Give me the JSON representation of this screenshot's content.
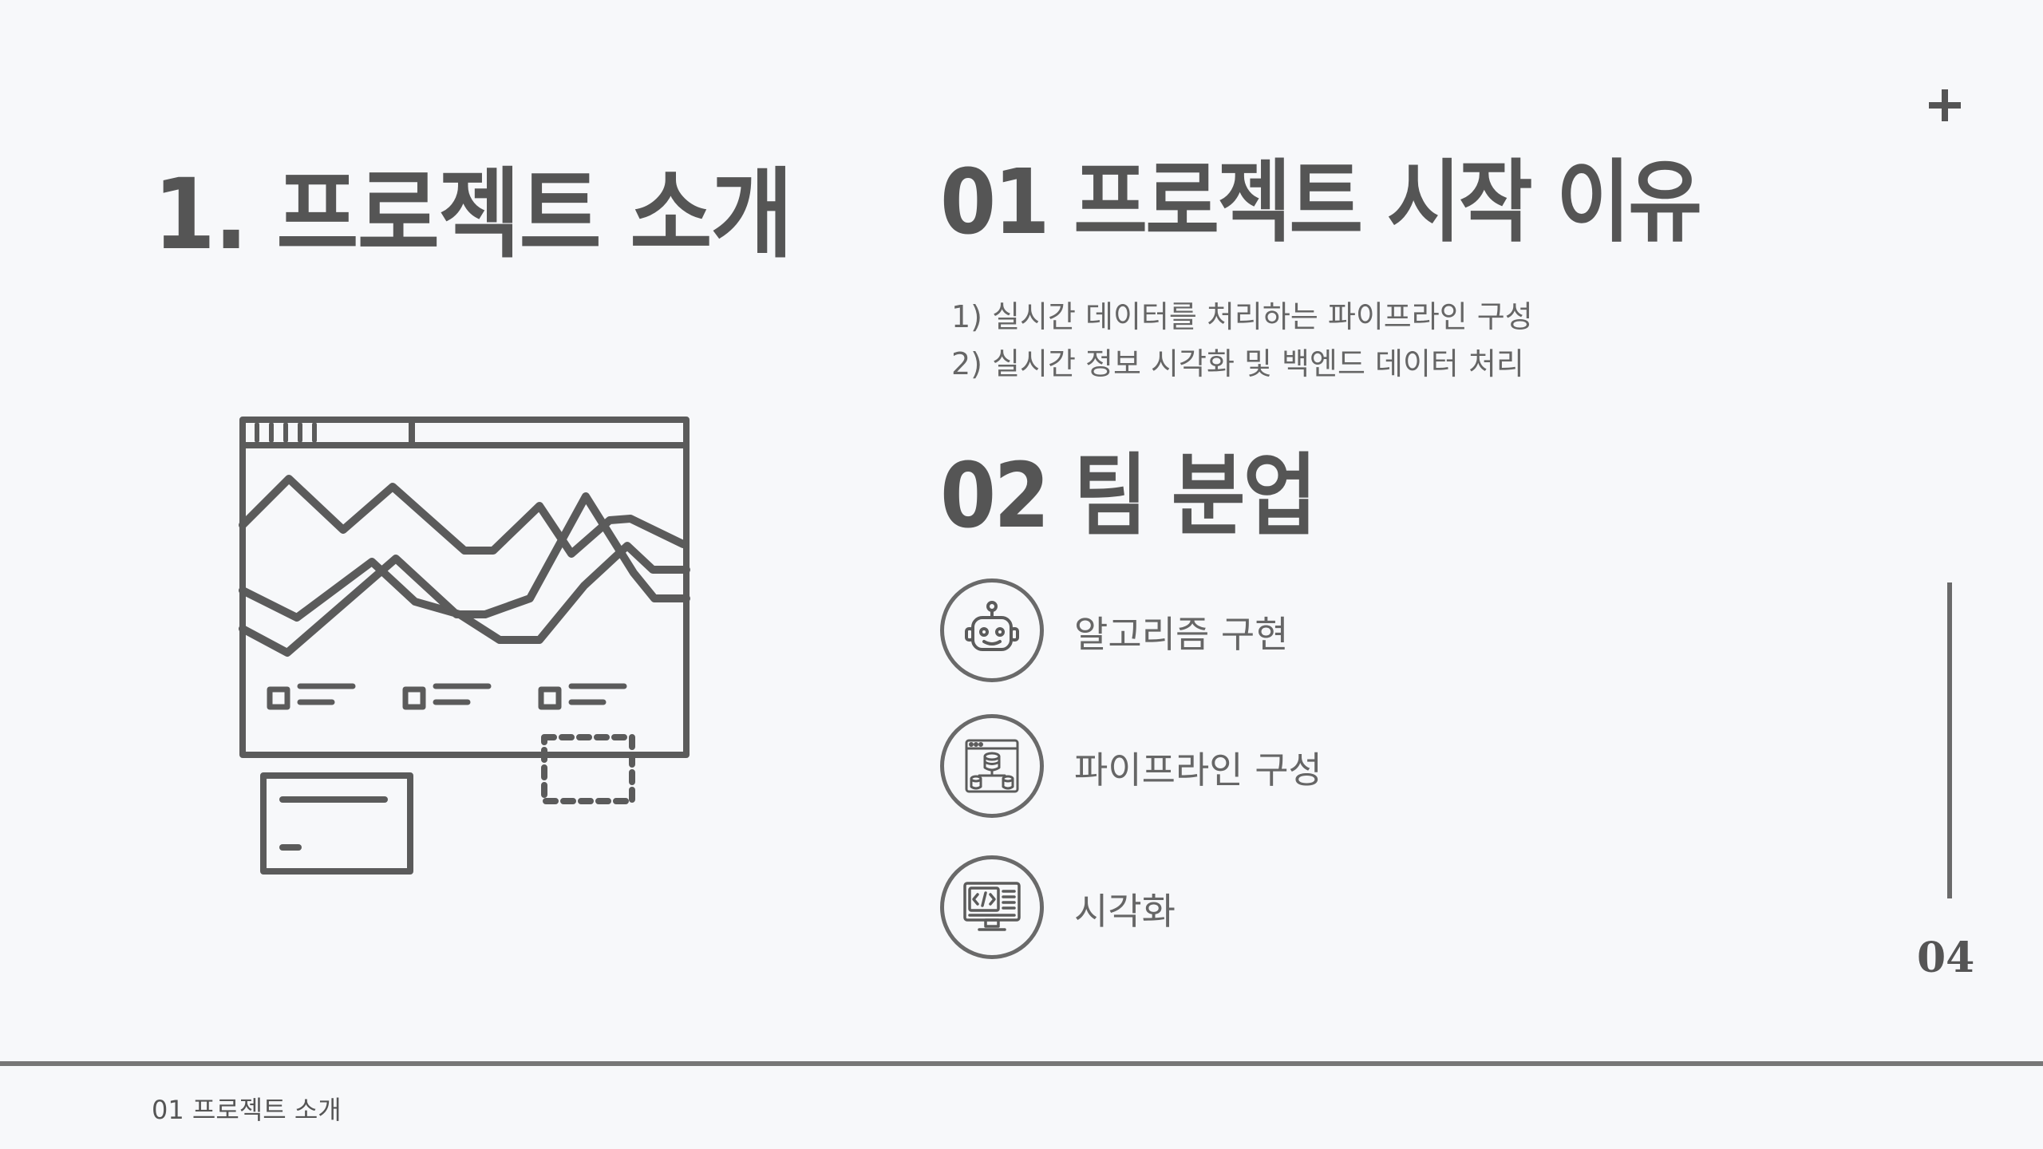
{
  "slide": {
    "main_title": "1. 프로젝트 소개",
    "page_number": "04",
    "footer_label": "01 프로젝트 소개"
  },
  "sections": {
    "reason": {
      "heading": "01 프로젝트 시작 이유",
      "items": [
        "1) 실시간 데이터를 처리하는 파이프라인 구성",
        "2) 실시간 정보 시각화 및 백엔드 데이터 처리"
      ]
    },
    "team": {
      "heading": "02 팀 분업",
      "items": [
        {
          "label": "알고리즘 구현",
          "icon": "robot-icon"
        },
        {
          "label": "파이프라인 구성",
          "icon": "database-pipeline-icon"
        },
        {
          "label": "시각화",
          "icon": "code-monitor-icon"
        }
      ]
    }
  },
  "colors": {
    "background": "#f7f8fa",
    "text": "#555555",
    "line": "#6a6a6a"
  }
}
